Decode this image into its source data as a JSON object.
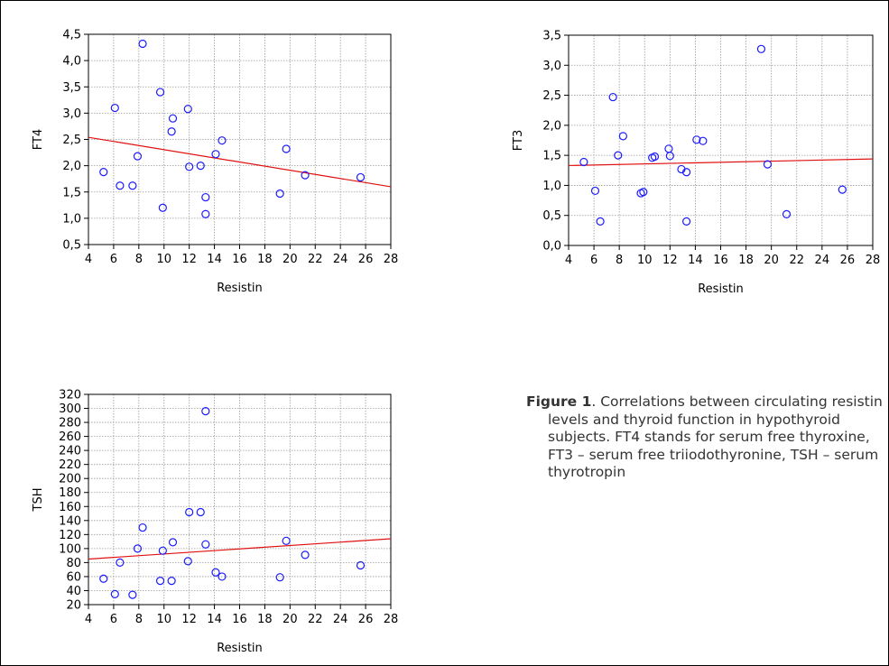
{
  "chart_data": [
    {
      "type": "scatter",
      "title": "",
      "xlabel": "Resistin",
      "ylabel": "FT4",
      "xlim": [
        4,
        28
      ],
      "ylim": [
        0.5,
        4.5
      ],
      "xticks": [
        "4",
        "6",
        "8",
        "10",
        "12",
        "14",
        "16",
        "18",
        "20",
        "22",
        "24",
        "26",
        "28"
      ],
      "yticks": [
        "0,5",
        "1,0",
        "1,5",
        "2,0",
        "2,5",
        "3,0",
        "3,5",
        "4,0",
        "4,5"
      ],
      "grid": true,
      "x": [
        5.2,
        6.1,
        6.5,
        7.5,
        7.9,
        8.3,
        9.7,
        9.9,
        10.6,
        10.7,
        11.9,
        12.0,
        12.9,
        13.3,
        13.3,
        14.1,
        14.6,
        19.2,
        19.7,
        21.2,
        25.6
      ],
      "y": [
        1.88,
        3.1,
        1.62,
        1.62,
        2.18,
        4.32,
        3.4,
        1.2,
        2.65,
        2.9,
        3.08,
        1.98,
        2.0,
        1.08,
        1.4,
        2.22,
        2.48,
        1.47,
        2.32,
        1.82,
        1.78
      ],
      "fit_line": {
        "x": [
          4,
          28
        ],
        "y": [
          2.54,
          1.6
        ]
      }
    },
    {
      "type": "scatter",
      "title": "",
      "xlabel": "Resistin",
      "ylabel": "FT3",
      "xlim": [
        4,
        28
      ],
      "ylim": [
        0.0,
        3.5
      ],
      "xticks": [
        "4",
        "6",
        "8",
        "10",
        "12",
        "14",
        "16",
        "18",
        "20",
        "22",
        "24",
        "26",
        "28"
      ],
      "yticks": [
        "0,0",
        "0,5",
        "1,0",
        "1,5",
        "2,0",
        "2,5",
        "3,0",
        "3,5"
      ],
      "grid": true,
      "x": [
        5.2,
        6.1,
        6.5,
        7.5,
        7.9,
        8.3,
        9.7,
        9.9,
        10.6,
        10.8,
        11.9,
        12.0,
        12.9,
        13.3,
        13.3,
        14.1,
        14.6,
        19.2,
        19.7,
        21.2,
        25.6
      ],
      "y": [
        1.39,
        0.91,
        0.4,
        2.47,
        1.5,
        1.82,
        0.87,
        0.89,
        1.46,
        1.48,
        1.61,
        1.49,
        1.27,
        1.22,
        0.4,
        1.76,
        1.74,
        3.27,
        1.35,
        0.52,
        0.93
      ],
      "fit_line": {
        "x": [
          4,
          28
        ],
        "y": [
          1.33,
          1.44
        ]
      }
    },
    {
      "type": "scatter",
      "title": "",
      "xlabel": "Resistin",
      "ylabel": "TSH",
      "xlim": [
        4,
        28
      ],
      "ylim": [
        20,
        320
      ],
      "xticks": [
        "4",
        "6",
        "8",
        "10",
        "12",
        "14",
        "16",
        "18",
        "20",
        "22",
        "24",
        "26",
        "28"
      ],
      "yticks": [
        "20",
        "40",
        "60",
        "80",
        "100",
        "120",
        "140",
        "160",
        "180",
        "200",
        "220",
        "240",
        "260",
        "280",
        "300",
        "320"
      ],
      "grid": true,
      "x": [
        5.2,
        6.1,
        6.5,
        7.5,
        7.9,
        8.3,
        9.7,
        9.9,
        10.6,
        10.7,
        11.9,
        12.0,
        12.9,
        13.3,
        13.3,
        14.1,
        14.6,
        19.2,
        19.7,
        21.2,
        25.6
      ],
      "y": [
        57,
        35,
        80,
        34,
        100,
        130,
        54,
        97,
        54,
        109,
        82,
        152,
        152,
        296,
        106,
        66,
        60,
        59,
        111,
        91,
        76
      ],
      "fit_line": {
        "x": [
          4,
          28
        ],
        "y": [
          85,
          114
        ]
      }
    }
  ],
  "caption": {
    "label": "Figure 1",
    "text": ". Correlations between circulating resistin levels and thyroid function in hypothyroid subjects. FT4 stands for serum free thyroxine, FT3 – serum free triiodothyronine, TSH – serum thyrotropin"
  },
  "colors": {
    "marker": "#1a1aff",
    "fit_line": "#e01010",
    "grid": "#9a9a9a"
  }
}
